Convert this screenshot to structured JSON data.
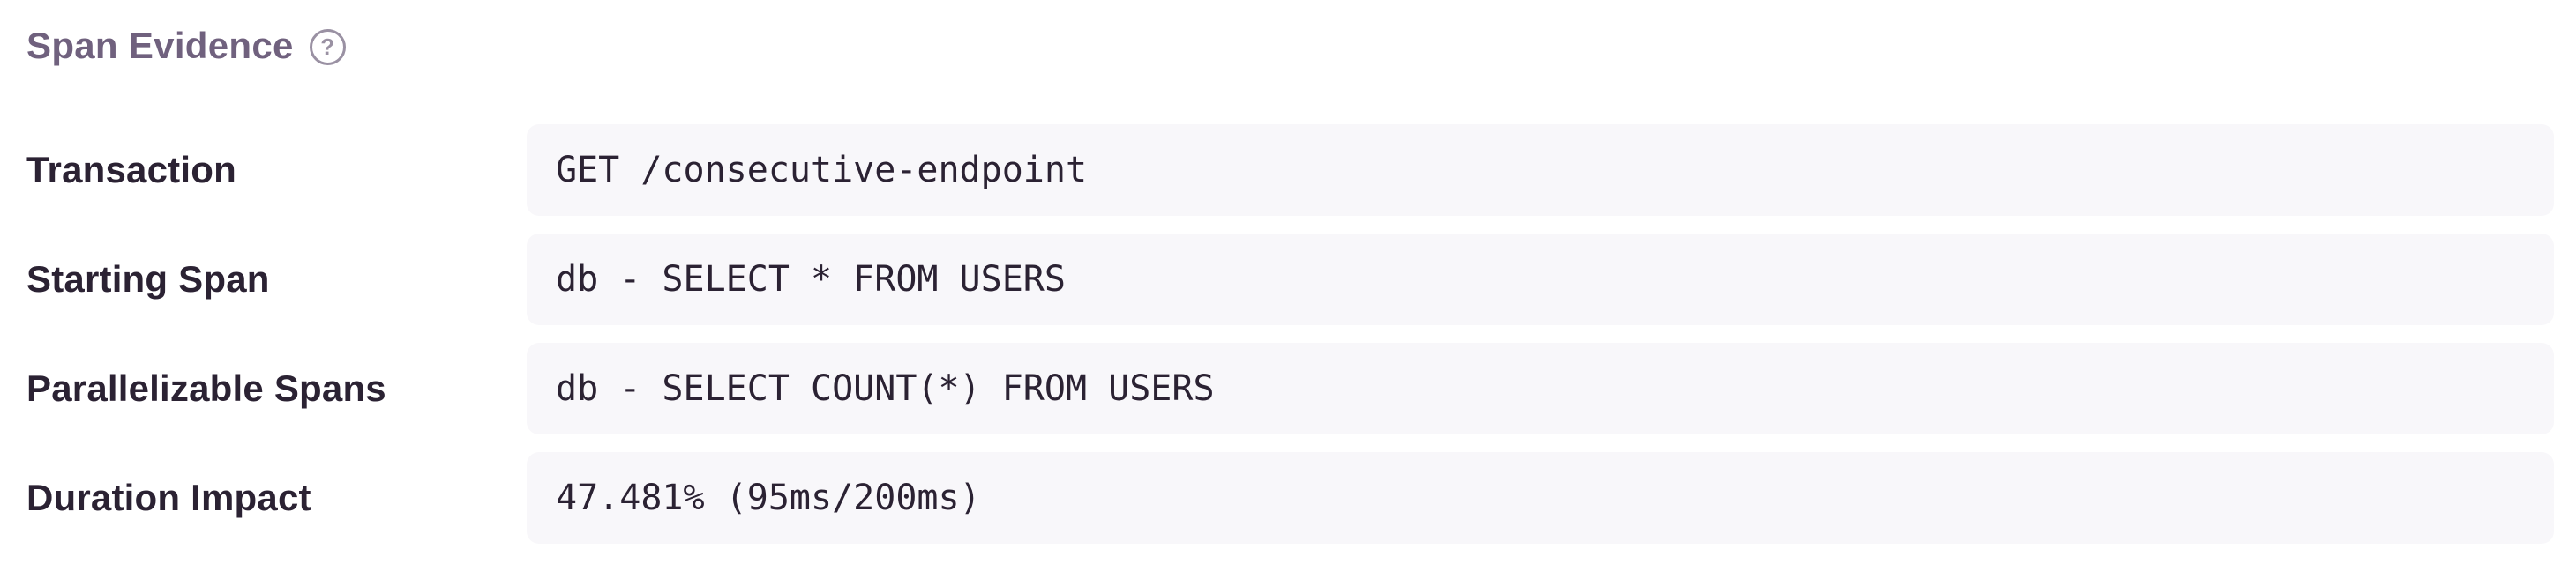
{
  "section": {
    "title": "Span Evidence",
    "help_icon_glyph": "?"
  },
  "rows": [
    {
      "label": "Transaction",
      "value": "GET /consecutive-endpoint"
    },
    {
      "label": "Starting Span",
      "value": "db - SELECT * FROM USERS"
    },
    {
      "label": "Parallelizable Spans",
      "value": "db - SELECT COUNT(*) FROM USERS"
    },
    {
      "label": "Duration Impact",
      "value": "47.481% (95ms/200ms)"
    }
  ],
  "colors": {
    "page_bg": "#ffffff",
    "heading_text": "#70617e",
    "help_icon": "#9a91a3",
    "label_text": "#2b2233",
    "value_text": "#2b2233",
    "value_bg": "#f8f7fa"
  }
}
